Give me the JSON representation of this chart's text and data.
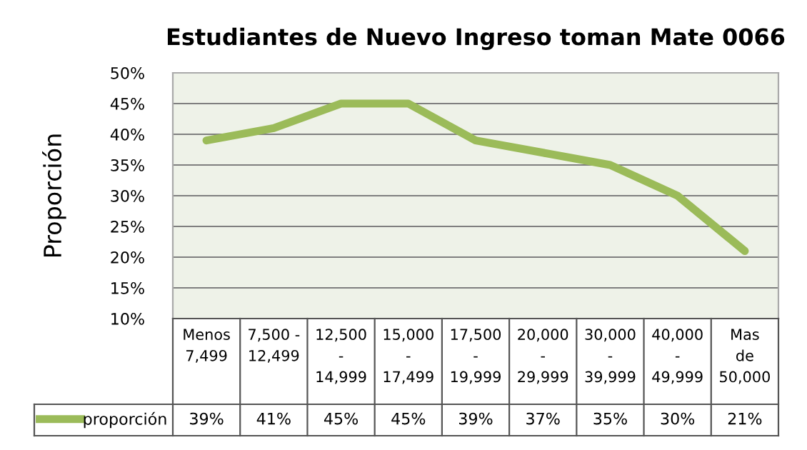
{
  "chart_data": {
    "type": "line",
    "title": "Estudiantes de Nuevo Ingreso toman Mate 0066",
    "ylabel": "Proporción",
    "categories": [
      "Menos\n7,499",
      "7,500 -\n12,499",
      "12,500\n-\n14,999",
      "15,000\n-\n17,499",
      "17,500\n-\n19,999",
      "20,000\n-\n29,999",
      "30,000\n-\n39,999",
      "40,000\n-\n49,999",
      "Mas\nde\n50,000"
    ],
    "series": [
      {
        "name": "proporción",
        "color": "#9bbb59",
        "values": [
          39,
          41,
          45,
          45,
          39,
          37,
          35,
          30,
          21
        ],
        "value_labels": [
          "39%",
          "41%",
          "45%",
          "45%",
          "39%",
          "37%",
          "35%",
          "30%",
          "21%"
        ]
      }
    ],
    "ylim": [
      10,
      50
    ],
    "yticks": [
      {
        "value": 10,
        "label": "10%"
      },
      {
        "value": 15,
        "label": "15%"
      },
      {
        "value": 20,
        "label": "20%"
      },
      {
        "value": 25,
        "label": "25%"
      },
      {
        "value": 30,
        "label": "30%"
      },
      {
        "value": 35,
        "label": "35%"
      },
      {
        "value": 40,
        "label": "40%"
      },
      {
        "value": 45,
        "label": "45%"
      },
      {
        "value": 50,
        "label": "50%"
      }
    ],
    "grid": "y",
    "legend": "bottom",
    "marker": "none",
    "line_style": "solid"
  }
}
